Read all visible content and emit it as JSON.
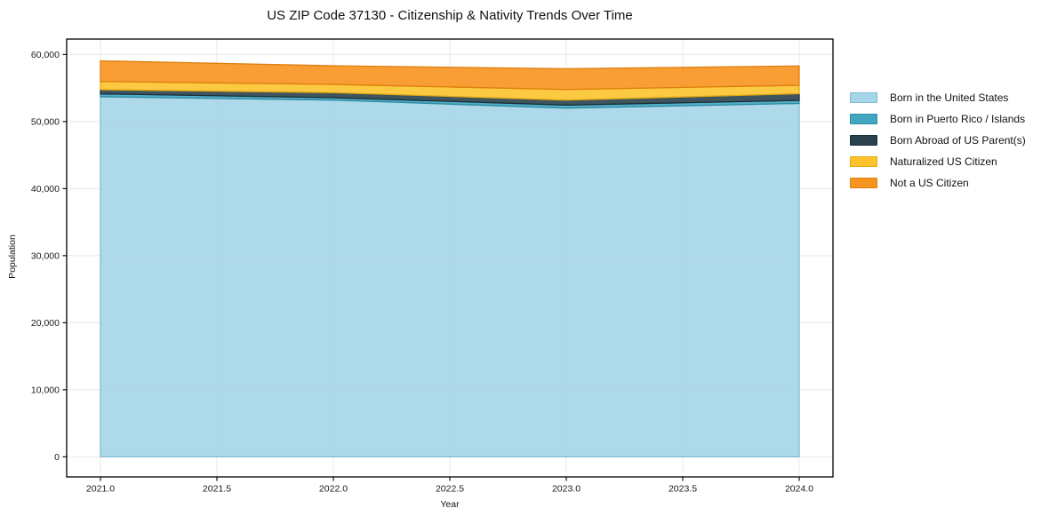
{
  "chart": {
    "title": "US ZIP Code 37130 - Citizenship & Nativity Trends Over Time",
    "xlabel": "Year",
    "ylabel": "Population"
  },
  "chart_data": {
    "type": "area",
    "stacked": true,
    "title": "US ZIP Code 37130 - Citizenship & Nativity Trends Over Time",
    "xlabel": "Year",
    "ylabel": "Population",
    "legend_position": "right",
    "grid": true,
    "x": [
      2021,
      2022,
      2023,
      2024
    ],
    "series": [
      {
        "name": "Born in the United States",
        "color": "#a5d5e8",
        "edge": "#7fb9d6",
        "values": [
          53700,
          53200,
          52000,
          52700
        ]
      },
      {
        "name": "Born in Puerto Rico / Islands",
        "color": "#3fa7c0",
        "edge": "#2f8ba3",
        "values": [
          430,
          360,
          450,
          450
        ]
      },
      {
        "name": "Born Abroad of US Parent(s)",
        "color": "#29424e",
        "edge": "#1b2f39",
        "values": [
          620,
          750,
          740,
          1000
        ]
      },
      {
        "name": "Naturalized US Citizen",
        "color": "#fcc32d",
        "edge": "#e2a814",
        "values": [
          1230,
          1230,
          1590,
          1260
        ]
      },
      {
        "name": "Not a US Citizen",
        "color": "#f7941f",
        "edge": "#de7e0d",
        "values": [
          3070,
          2780,
          3100,
          2880
        ]
      }
    ],
    "totals": [
      59050,
      58320,
      57880,
      58290
    ],
    "xlim": [
      2020.855,
      2024.145
    ],
    "ylim": [
      -3000,
      62300
    ],
    "xticks": [
      {
        "v": 2021.0,
        "label": "2021.0"
      },
      {
        "v": 2021.5,
        "label": "2021.5"
      },
      {
        "v": 2022.0,
        "label": "2022.0"
      },
      {
        "v": 2022.5,
        "label": "2022.5"
      },
      {
        "v": 2023.0,
        "label": "2023.0"
      },
      {
        "v": 2023.5,
        "label": "2023.5"
      },
      {
        "v": 2024.0,
        "label": "2024.0"
      }
    ],
    "yticks": [
      {
        "v": 0,
        "label": "0"
      },
      {
        "v": 10000,
        "label": "10,000"
      },
      {
        "v": 20000,
        "label": "20,000"
      },
      {
        "v": 30000,
        "label": "30,000"
      },
      {
        "v": 40000,
        "label": "40,000"
      },
      {
        "v": 50000,
        "label": "50,000"
      },
      {
        "v": 60000,
        "label": "60,000"
      }
    ],
    "colors": {
      "grid": "#e8e8e8",
      "spine": "#000000",
      "tick_text": "#1a1a1a",
      "background": "#ffffff"
    }
  }
}
